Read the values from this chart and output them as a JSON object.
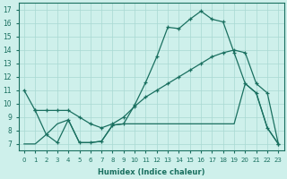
{
  "xlabel": "Humidex (Indice chaleur)",
  "xlim": [
    -0.5,
    23.5
  ],
  "ylim": [
    6.5,
    17.5
  ],
  "xticks": [
    0,
    1,
    2,
    3,
    4,
    5,
    6,
    7,
    8,
    9,
    10,
    11,
    12,
    13,
    14,
    15,
    16,
    17,
    18,
    19,
    20,
    21,
    22,
    23
  ],
  "yticks": [
    7,
    8,
    9,
    10,
    11,
    12,
    13,
    14,
    15,
    16,
    17
  ],
  "bg_color": "#cef0eb",
  "grid_color": "#a8d8d2",
  "line_color": "#1a7060",
  "line1_x": [
    0,
    1,
    2,
    3,
    4,
    5,
    6,
    7,
    8,
    9,
    10,
    11,
    12,
    13,
    14,
    15,
    16,
    17,
    18,
    19,
    20,
    21,
    22,
    23
  ],
  "line1_y": [
    11.0,
    9.5,
    7.7,
    7.1,
    8.8,
    7.1,
    7.1,
    7.2,
    8.4,
    8.5,
    9.9,
    11.6,
    13.5,
    15.7,
    15.6,
    16.3,
    16.9,
    16.3,
    16.1,
    13.8,
    11.5,
    10.8,
    8.2,
    7.0
  ],
  "line2_x": [
    1,
    2,
    3,
    4,
    5,
    6,
    7,
    8,
    9,
    10,
    11,
    12,
    13,
    14,
    15,
    16,
    17,
    18,
    19,
    20,
    21,
    22,
    23
  ],
  "line2_y": [
    9.5,
    9.5,
    9.5,
    9.5,
    9.0,
    8.5,
    8.2,
    8.5,
    9.0,
    9.8,
    10.5,
    11.0,
    11.5,
    12.0,
    12.5,
    13.0,
    13.5,
    13.8,
    14.0,
    13.8,
    11.5,
    10.8,
    7.0
  ],
  "line3_x": [
    0,
    1,
    2,
    3,
    4,
    5,
    6,
    7,
    8,
    9,
    10,
    11,
    12,
    13,
    14,
    15,
    16,
    17,
    18,
    19,
    20,
    21,
    22,
    23
  ],
  "line3_y": [
    7.0,
    7.0,
    7.7,
    8.5,
    8.8,
    7.1,
    7.1,
    7.2,
    8.4,
    8.5,
    8.5,
    8.5,
    8.5,
    8.5,
    8.5,
    8.5,
    8.5,
    8.5,
    8.5,
    8.5,
    11.5,
    10.8,
    8.2,
    7.0
  ]
}
